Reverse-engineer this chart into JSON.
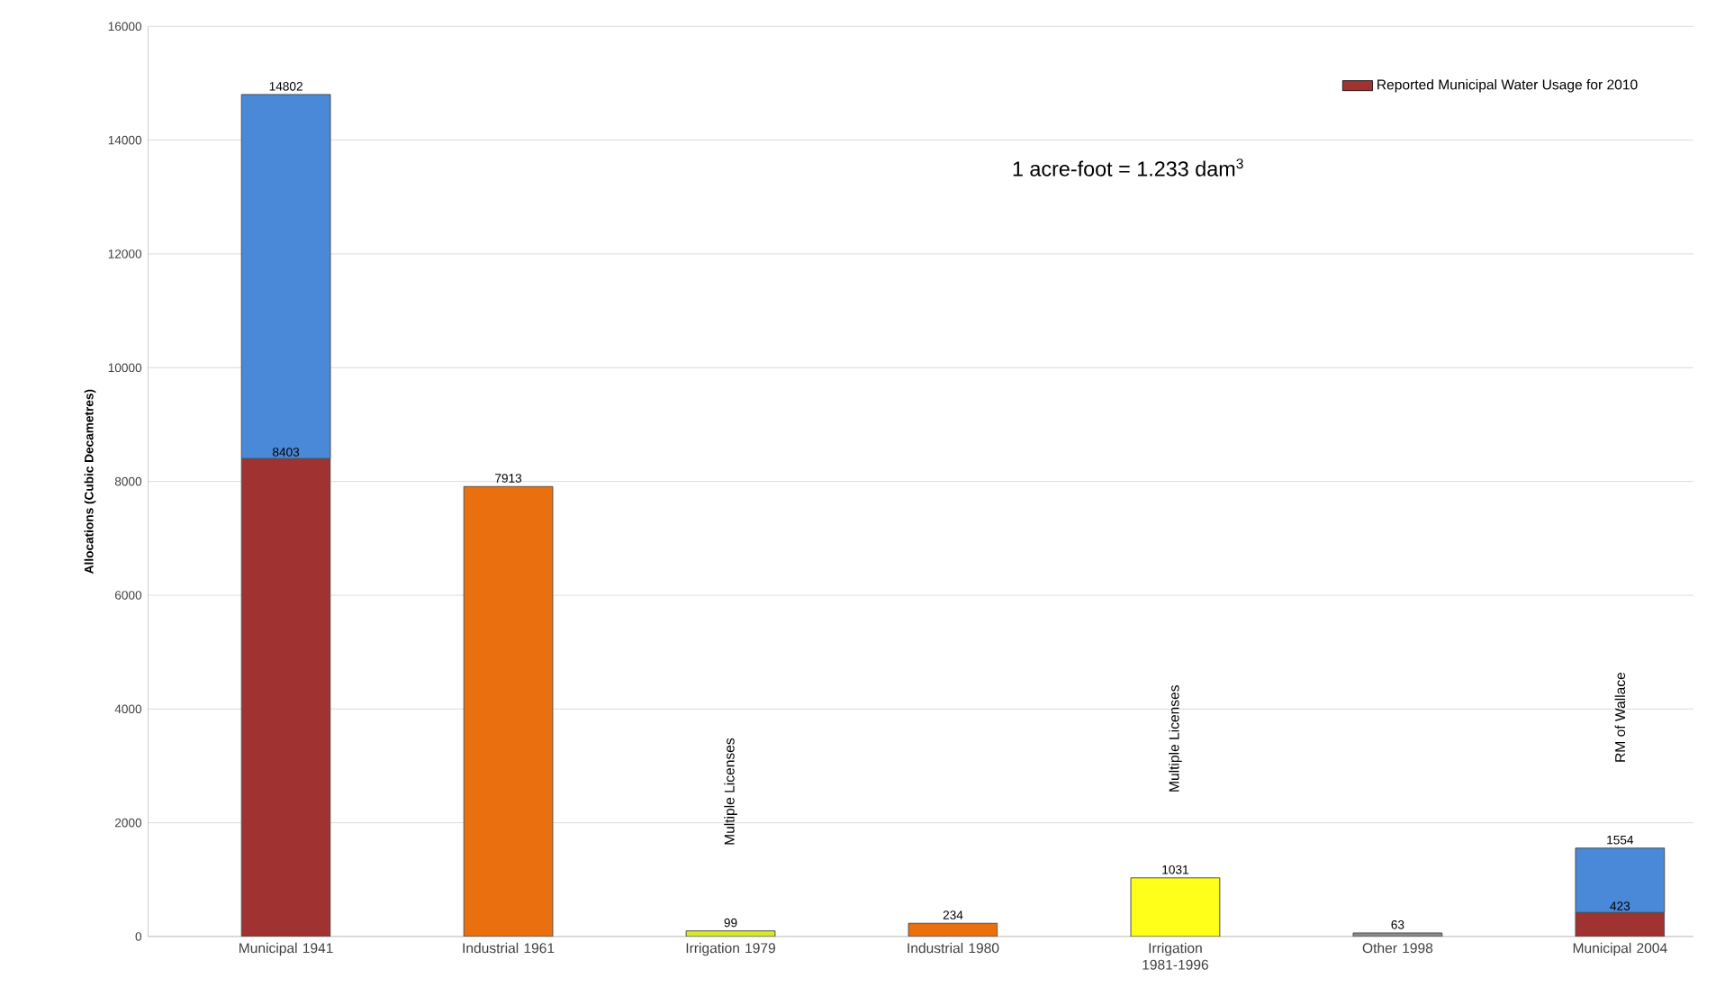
{
  "chart_data": {
    "type": "bar",
    "stacked": true,
    "ylabel": "Allocations (Cubic Decametres)",
    "categories": [
      "Municipal 1941",
      "Industrial 1961",
      "Irrigation 1979",
      "Industrial 1980",
      "Irrigation 1981-1996",
      "Other 1998",
      "Municipal 2004"
    ],
    "series": [
      {
        "name": "Reported Municipal Water Usage for 2010",
        "color": "#a03232",
        "values": [
          8403,
          null,
          null,
          null,
          null,
          null,
          423
        ],
        "value_labels": [
          "8403",
          null,
          null,
          null,
          null,
          null,
          "423"
        ]
      },
      {
        "colors": [
          "#4a88d8",
          "#ea700f",
          "#d6ea2a",
          "#ea700f",
          "#ffff1a",
          "#8c8c8c",
          "#4a88d8"
        ],
        "values": [
          6399,
          7913,
          99,
          234,
          1031,
          63,
          1131
        ]
      }
    ],
    "totals": [
      "14802",
      "7913",
      "99",
      "234",
      "1031",
      "63",
      "1554"
    ],
    "ylim": [
      0,
      16000
    ],
    "yticks": [
      0,
      2000,
      4000,
      6000,
      8000,
      10000,
      12000,
      14000,
      16000
    ],
    "grid": "y",
    "legend": "top right",
    "annotations": [
      "1 acre-foot = 1.233 dam$^{3}$",
      "Multiple Licenses",
      "Multiple Licenses",
      "RM of Wallace"
    ]
  }
}
